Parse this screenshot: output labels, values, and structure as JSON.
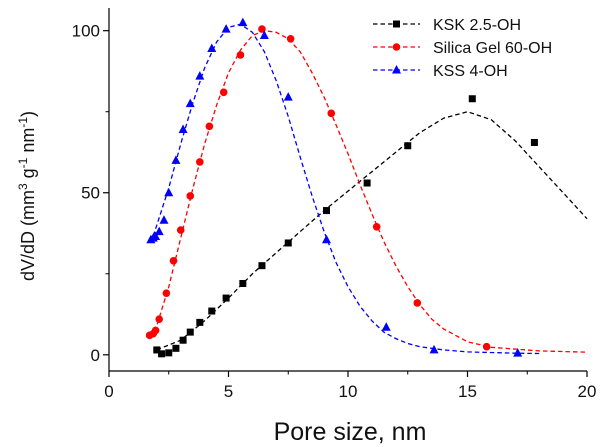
{
  "chart_data": {
    "type": "scatter",
    "xlabel": "Pore size, nm",
    "ylabel": {
      "base": "dV/dD (mm",
      "sup1": "3",
      "mid1": " g",
      "sup2": "-1",
      "mid2": " nm",
      "sup3": "-1",
      "end": ")"
    },
    "xlim": [
      0,
      20
    ],
    "ylim": [
      -5,
      107
    ],
    "x_ticks": [
      0,
      5,
      10,
      15,
      20
    ],
    "y_ticks": [
      0,
      50,
      100
    ],
    "grid": false,
    "legend_position": "top-right",
    "series": [
      {
        "name": "KSK 2.5-OH",
        "color": "#000000",
        "marker": "square",
        "points": [
          [
            2.0,
            1.5
          ],
          [
            2.2,
            0.3
          ],
          [
            2.5,
            0.6
          ],
          [
            2.8,
            2.0
          ],
          [
            3.1,
            4.5
          ],
          [
            3.4,
            7.0
          ],
          [
            3.8,
            10.0
          ],
          [
            4.3,
            13.5
          ],
          [
            4.9,
            17.5
          ],
          [
            5.6,
            22.0
          ],
          [
            6.4,
            27.5
          ],
          [
            7.5,
            34.5
          ],
          [
            9.1,
            44.5
          ],
          [
            10.8,
            53.0
          ],
          [
            12.5,
            64.5
          ],
          [
            15.2,
            79.0
          ],
          [
            17.8,
            65.5
          ]
        ],
        "fit": [
          [
            2.0,
            1.5
          ],
          [
            3.0,
            4.5
          ],
          [
            4.0,
            10.5
          ],
          [
            5.0,
            17.5
          ],
          [
            6.0,
            25.0
          ],
          [
            7.0,
            31.5
          ],
          [
            8.0,
            38.0
          ],
          [
            9.0,
            44.5
          ],
          [
            10.0,
            50.5
          ],
          [
            11.0,
            56.5
          ],
          [
            12.0,
            62.5
          ],
          [
            13.0,
            68.5
          ],
          [
            14.0,
            73.0
          ],
          [
            15.0,
            75.0
          ],
          [
            16.0,
            72.5
          ],
          [
            17.0,
            66.0
          ],
          [
            18.0,
            58.0
          ],
          [
            19.0,
            50.0
          ],
          [
            20.0,
            42.0
          ]
        ]
      },
      {
        "name": "Silica Gel 60-OH",
        "color": "#ff0000",
        "marker": "circle",
        "points": [
          [
            1.7,
            6.0
          ],
          [
            1.85,
            6.5
          ],
          [
            1.95,
            7.5
          ],
          [
            2.1,
            11.0
          ],
          [
            2.4,
            19.0
          ],
          [
            2.7,
            29.0
          ],
          [
            3.0,
            38.5
          ],
          [
            3.4,
            49.0
          ],
          [
            3.8,
            59.5
          ],
          [
            4.2,
            70.5
          ],
          [
            4.8,
            81.0
          ],
          [
            5.5,
            92.5
          ],
          [
            6.4,
            100.5
          ],
          [
            7.6,
            97.5
          ],
          [
            9.3,
            74.5
          ],
          [
            11.2,
            39.5
          ],
          [
            12.9,
            16.0
          ],
          [
            15.8,
            2.5
          ]
        ],
        "fit": [
          [
            1.7,
            5.5
          ],
          [
            2.0,
            9.0
          ],
          [
            2.5,
            21.0
          ],
          [
            3.0,
            36.0
          ],
          [
            3.5,
            51.0
          ],
          [
            4.0,
            65.0
          ],
          [
            4.5,
            77.0
          ],
          [
            5.0,
            87.0
          ],
          [
            5.5,
            94.0
          ],
          [
            6.0,
            98.5
          ],
          [
            6.5,
            100.0
          ],
          [
            7.0,
            99.5
          ],
          [
            7.5,
            97.5
          ],
          [
            8.0,
            93.5
          ],
          [
            8.5,
            87.0
          ],
          [
            9.0,
            79.5
          ],
          [
            9.5,
            71.0
          ],
          [
            10.0,
            62.0
          ],
          [
            10.5,
            52.5
          ],
          [
            11.0,
            43.5
          ],
          [
            11.5,
            35.0
          ],
          [
            12.0,
            27.5
          ],
          [
            12.5,
            21.0
          ],
          [
            13.0,
            15.5
          ],
          [
            13.5,
            11.0
          ],
          [
            14.0,
            8.0
          ],
          [
            15.0,
            4.0
          ],
          [
            16.0,
            2.3
          ],
          [
            18.0,
            1.2
          ],
          [
            20.0,
            0.8
          ]
        ]
      },
      {
        "name": "KSS 4-OH",
        "color": "#0000ff",
        "marker": "triangle",
        "points": [
          [
            1.75,
            35.5
          ],
          [
            1.85,
            36.0
          ],
          [
            1.95,
            36.5
          ],
          [
            2.1,
            38.0
          ],
          [
            2.3,
            41.5
          ],
          [
            2.5,
            50.0
          ],
          [
            2.8,
            60.0
          ],
          [
            3.1,
            69.5
          ],
          [
            3.4,
            77.5
          ],
          [
            3.8,
            86.0
          ],
          [
            4.3,
            94.5
          ],
          [
            4.9,
            100.5
          ],
          [
            5.6,
            102.5
          ],
          [
            6.5,
            98.5
          ],
          [
            7.5,
            79.5
          ],
          [
            9.1,
            35.5
          ],
          [
            11.6,
            8.5
          ],
          [
            13.6,
            1.5
          ],
          [
            17.1,
            0.5
          ]
        ],
        "fit": [
          [
            1.75,
            34.5
          ],
          [
            2.0,
            40.0
          ],
          [
            2.5,
            51.5
          ],
          [
            3.0,
            65.0
          ],
          [
            3.5,
            77.5
          ],
          [
            4.0,
            88.5
          ],
          [
            4.5,
            96.5
          ],
          [
            5.0,
            101.0
          ],
          [
            5.5,
            102.0
          ],
          [
            6.0,
            99.5
          ],
          [
            6.5,
            93.5
          ],
          [
            7.0,
            84.5
          ],
          [
            7.5,
            73.5
          ],
          [
            8.0,
            61.0
          ],
          [
            8.5,
            49.0
          ],
          [
            9.0,
            38.0
          ],
          [
            9.5,
            28.5
          ],
          [
            10.0,
            21.0
          ],
          [
            10.5,
            15.0
          ],
          [
            11.0,
            10.5
          ],
          [
            11.5,
            7.0
          ],
          [
            12.0,
            5.0
          ],
          [
            12.5,
            3.5
          ],
          [
            13.0,
            2.5
          ],
          [
            14.0,
            1.5
          ],
          [
            15.0,
            0.9
          ],
          [
            17.0,
            0.5
          ],
          [
            18.0,
            0.4
          ]
        ]
      }
    ]
  }
}
